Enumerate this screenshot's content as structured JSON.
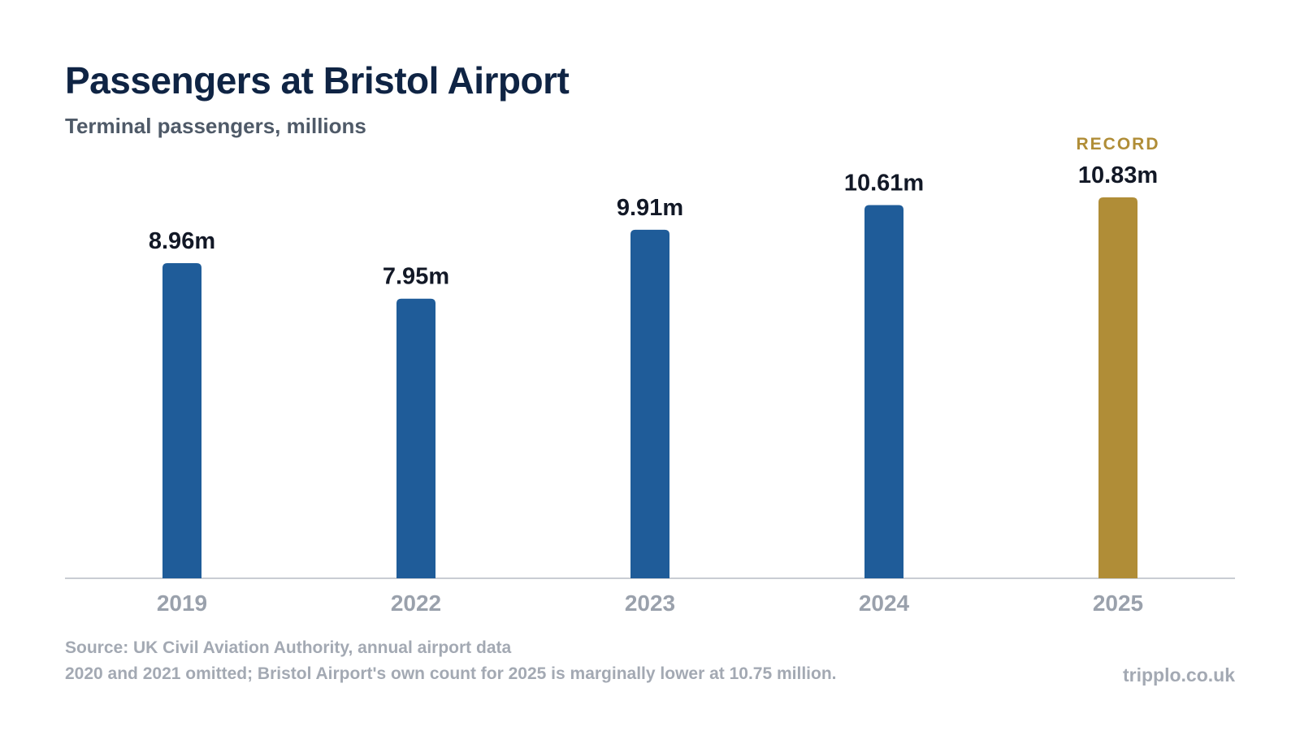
{
  "header": {
    "title": "Passengers at Bristol Airport",
    "subtitle": "Terminal passengers, millions"
  },
  "chart_data": {
    "type": "bar",
    "title": "Passengers at Bristol Airport",
    "subtitle": "Terminal passengers, millions",
    "categories": [
      "2019",
      "2022",
      "2023",
      "2024",
      "2025"
    ],
    "values": [
      8.96,
      7.95,
      9.91,
      10.61,
      10.83
    ],
    "data_labels": [
      "8.96m",
      "7.95m",
      "9.91m",
      "10.61m",
      "10.83m"
    ],
    "ylim": [
      0,
      10.83
    ],
    "grid": false,
    "highlight": {
      "category": "2025",
      "label": "RECORD"
    },
    "colors": {
      "bar": "#1f5c99",
      "highlight": "#b08d37",
      "axis": "#c9cdd3"
    }
  },
  "footer": {
    "source": "Source: UK Civil Aviation Authority, annual airport data",
    "note": "2020 and 2021 omitted; Bristol Airport's own count for 2025 is marginally lower at 10.75 million.",
    "site": "tripplo.co.uk"
  }
}
